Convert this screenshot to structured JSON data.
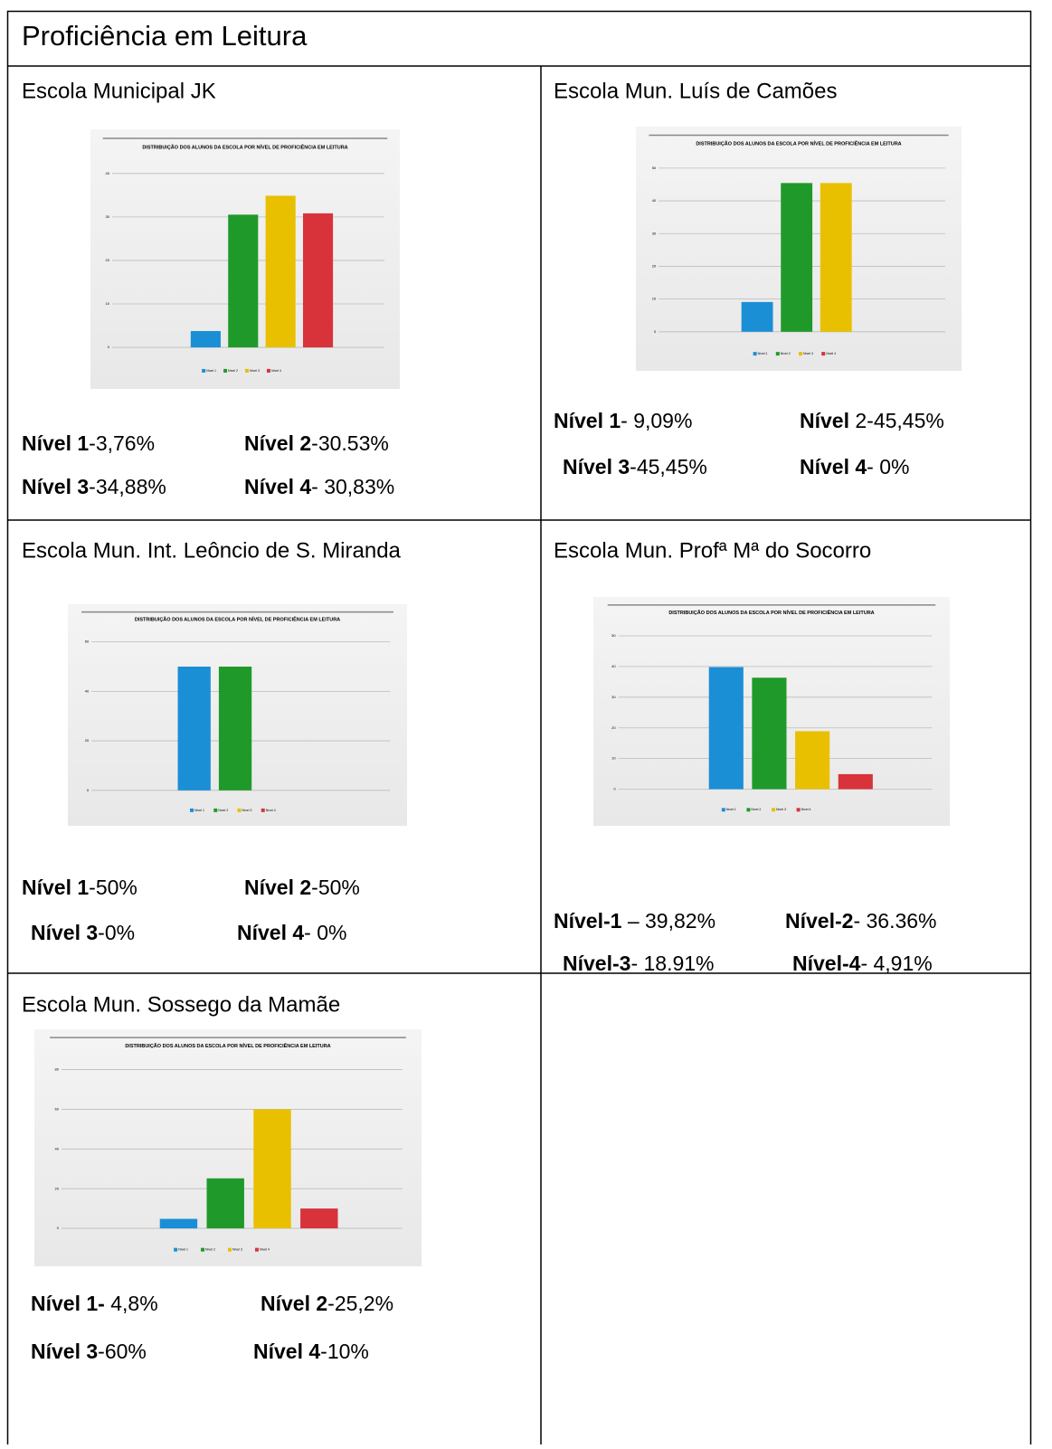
{
  "header": {
    "title": "Proficiência em Leitura"
  },
  "schools": [
    {
      "name": "Escola Municipal JK",
      "chart": {
        "type": "bar",
        "title": "DISTRIBUIÇÃO DOS ALUNOS DA ESCOLA POR NÍVEL DE PROFICIÊNCIA EM LEITURA",
        "categories": [
          "Nível 1",
          "Nível 2",
          "Nível 3",
          "Nível 4"
        ],
        "values": [
          3.76,
          30.53,
          34.88,
          30.83
        ],
        "colors": [
          "#1a8fd6",
          "#1f9a2a",
          "#e8c000",
          "#d8333a"
        ],
        "ylim": [
          0,
          40
        ],
        "yticks": [
          0,
          10,
          20,
          30,
          40
        ],
        "grid": true
      },
      "lines": [
        [
          {
            "label": "Nível 1",
            "value": "-3,76%"
          },
          {
            "label": "Nível 2",
            "value": "-30.53%"
          }
        ],
        [
          {
            "label": "Nível 3",
            "value": "-34,88%"
          },
          {
            "label": "Nível 4",
            "value": "- 30,83%"
          }
        ]
      ]
    },
    {
      "name": "Escola Mun. Luís de Camões",
      "chart": {
        "type": "bar",
        "title": "DISTRIBUIÇÃO DOS ALUNOS DA ESCOLA POR NÍVEL DE PROFICIÊNCIA EM LEITURA",
        "categories": [
          "Nível 1",
          "Nível 2",
          "Nível 3",
          "Nível 4"
        ],
        "values": [
          9.09,
          45.45,
          45.45,
          0
        ],
        "colors": [
          "#1a8fd6",
          "#1f9a2a",
          "#e8c000",
          "#d8333a"
        ],
        "ylim": [
          0,
          50
        ],
        "yticks": [
          0,
          10,
          20,
          30,
          40,
          50
        ],
        "grid": true
      },
      "lines": [
        [
          {
            "label": "Nível 1",
            "value": "- 9,09%"
          },
          {
            "label": "Nível",
            "value": " 2-45,45%"
          }
        ],
        [
          {
            "label": "Nível 3",
            "value": "-45,45%"
          },
          {
            "label": "Nível 4",
            "value": "- 0%"
          }
        ]
      ]
    },
    {
      "name": "Escola Mun. Int. Leôncio de S. Miranda",
      "chart": {
        "type": "bar",
        "title": "DISTRIBUIÇÃO DOS ALUNOS DA ESCOLA POR NÍVEL DE PROFICIÊNCIA EM LEITURA",
        "categories": [
          "Nível 1",
          "Nível 2",
          "Nível 3",
          "Nível 4"
        ],
        "values": [
          50,
          50,
          0,
          0
        ],
        "colors": [
          "#1a8fd6",
          "#1f9a2a",
          "#e8c000",
          "#d8333a"
        ],
        "ylim": [
          0,
          60
        ],
        "yticks": [
          0,
          20,
          40,
          60
        ],
        "grid": true
      },
      "lines": [
        [
          {
            "label": "Nível 1",
            "value": "-50%"
          },
          {
            "label": "Nível 2",
            "value": "-50%"
          }
        ],
        [
          {
            "label": "Nível 3",
            "value": "-0%"
          },
          {
            "label": "Nível 4",
            "value": "- 0%"
          }
        ]
      ]
    },
    {
      "name": "Escola Mun. Profª Mª do Socorro",
      "chart": {
        "type": "bar",
        "title": "DISTRIBUIÇÃO DOS ALUNOS DA ESCOLA POR NÍVEL DE PROFICIÊNCIA EM LEITURA",
        "categories": [
          "Nível 1",
          "Nível 2",
          "Nível 3",
          "Nível 4"
        ],
        "values": [
          39.82,
          36.36,
          18.91,
          4.91
        ],
        "colors": [
          "#1a8fd6",
          "#1f9a2a",
          "#e8c000",
          "#d8333a"
        ],
        "ylim": [
          0,
          50
        ],
        "yticks": [
          0,
          10,
          20,
          30,
          40,
          50
        ],
        "grid": true
      },
      "lines": [
        [
          {
            "label": "Nível-1",
            "value": " – 39,82%"
          },
          {
            "label": "Nível-2",
            "value": "- 36.36%"
          }
        ],
        [
          {
            "label": "Nível-3",
            "value": "- 18.91%"
          },
          {
            "label": "Nível-4",
            "value": "- 4,91%"
          }
        ]
      ]
    },
    {
      "name": "Escola Mun. Sossego da Mamãe",
      "chart": {
        "type": "bar",
        "title": "DISTRIBUIÇÃO DOS ALUNOS DA ESCOLA POR NÍVEL DE PROFICIÊNCIA EM LEITURA",
        "categories": [
          "Nível 1",
          "Nível 2",
          "Nível 3",
          "Nível 4"
        ],
        "values": [
          4.8,
          25.2,
          60,
          10
        ],
        "colors": [
          "#1a8fd6",
          "#1f9a2a",
          "#e8c000",
          "#d8333a"
        ],
        "ylim": [
          0,
          80
        ],
        "yticks": [
          0,
          20,
          40,
          60,
          80
        ],
        "grid": true
      },
      "lines": [
        [
          {
            "label": "Nível 1-",
            "value": " 4,8%"
          },
          {
            "label": "Nível 2",
            "value": "-25,2%"
          }
        ],
        [
          {
            "label": "Nível 3",
            "value": "-60%"
          },
          {
            "label": "Nível 4",
            "value": "-10%"
          }
        ]
      ]
    }
  ]
}
